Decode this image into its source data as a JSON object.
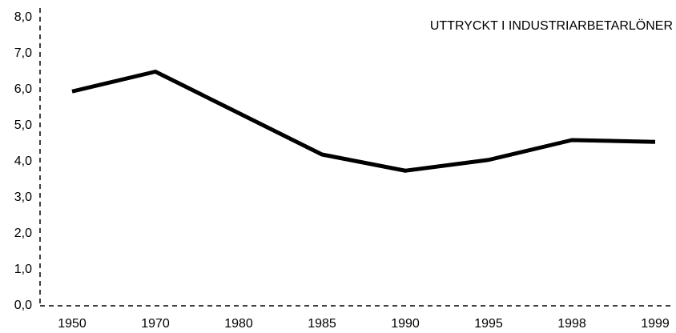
{
  "chart_data": {
    "type": "line",
    "annotation": "UTTRYCKT I INDUSTRIARBETARLÖNER",
    "categories": [
      "1950",
      "1970",
      "1980",
      "1985",
      "1990",
      "1995",
      "1998",
      "1999"
    ],
    "series": [
      {
        "color": "#000000",
        "values": [
          5.95,
          6.5,
          5.35,
          4.2,
          3.75,
          4.05,
          4.6,
          4.55
        ]
      }
    ],
    "ylim": [
      0,
      8
    ],
    "yticks": [
      {
        "value": 0,
        "label": "0,0"
      },
      {
        "value": 1,
        "label": "1,0"
      },
      {
        "value": 2,
        "label": "2,0"
      },
      {
        "value": 3,
        "label": "3,0"
      },
      {
        "value": 4,
        "label": "4,0"
      },
      {
        "value": 5,
        "label": "5,0"
      },
      {
        "value": 6,
        "label": "6,0"
      },
      {
        "value": 7,
        "label": "7,0"
      },
      {
        "value": 8,
        "label": "8,0"
      }
    ]
  }
}
